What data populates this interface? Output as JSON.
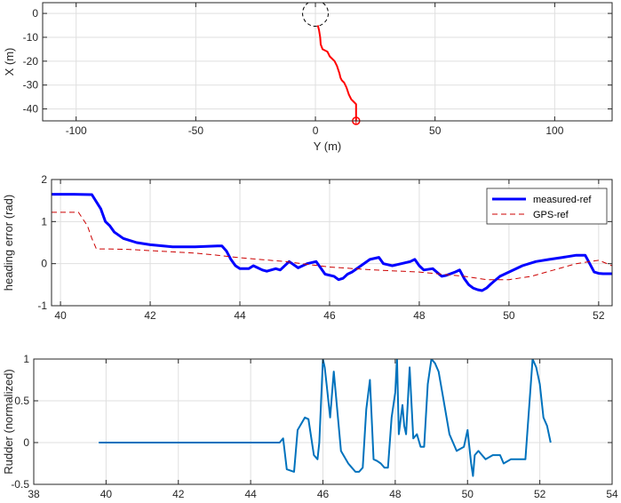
{
  "chart_data": [
    {
      "type": "line",
      "xlabel": "Y (m)",
      "ylabel": "X (m)",
      "xlim": [
        -114,
        124
      ],
      "ylim": [
        -45,
        4.5
      ],
      "xticks": [
        -100,
        -50,
        0,
        50,
        100
      ],
      "xtick_labels": [
        "-100",
        "-50",
        "0",
        "50",
        "100"
      ],
      "yticks": [
        0,
        -10,
        -20,
        -30,
        -40
      ],
      "ytick_labels": [
        "0",
        "-10",
        "-20",
        "-30",
        "-40"
      ],
      "grid": true,
      "colors": {
        "path": "#ff0000",
        "marker": "#ff0000",
        "circle": "#000000"
      },
      "series": [
        {
          "x": [
            1,
            1.5,
            2,
            2.2,
            3,
            5,
            6,
            8,
            9,
            10,
            10.5,
            11,
            12,
            13,
            14,
            15,
            16,
            17,
            17,
            17
          ],
          "y": [
            -5,
            -7,
            -10,
            -13,
            -15,
            -16,
            -18,
            -20,
            -22,
            -25,
            -27,
            -28,
            -29,
            -31,
            -34,
            -36,
            -37,
            -38,
            -41,
            -45
          ]
        }
      ],
      "start_circle": {
        "x": 0,
        "y": 0,
        "radius_m": 5
      },
      "end_marker": {
        "x": 17,
        "y": -45
      }
    },
    {
      "type": "line",
      "xlabel": "",
      "ylabel": "heading error (rad)",
      "xlim": [
        39.8,
        52.3
      ],
      "ylim": [
        -1,
        2
      ],
      "xticks": [
        40,
        42,
        44,
        46,
        48,
        50,
        52
      ],
      "xtick_labels": [
        "40",
        "42",
        "44",
        "46",
        "48",
        "50",
        "52"
      ],
      "yticks": [
        -1,
        0,
        1,
        2
      ],
      "ytick_labels": [
        "-1",
        "0",
        "1",
        "2"
      ],
      "grid": true,
      "legend": "top-right",
      "series": [
        {
          "name": "measured-ref",
          "color": "#0000ff",
          "style": "solid",
          "x": [
            39.8,
            40.3,
            40.7,
            40.9,
            41.0,
            41.1,
            41.2,
            41.4,
            41.7,
            42.0,
            42.5,
            43.0,
            43.5,
            43.6,
            43.7,
            43.8,
            43.9,
            44.0,
            44.2,
            44.3,
            44.4,
            44.5,
            44.6,
            44.8,
            44.9,
            45.1,
            45.3,
            45.5,
            45.7,
            45.8,
            45.9,
            46.1,
            46.2,
            46.3,
            46.4,
            46.5,
            46.7,
            46.9,
            47.1,
            47.2,
            47.4,
            47.6,
            47.8,
            47.9,
            48.0,
            48.1,
            48.3,
            48.5,
            48.6,
            48.8,
            48.9,
            49.0,
            49.1,
            49.2,
            49.3,
            49.4,
            49.5,
            49.6,
            49.8,
            50.0,
            50.3,
            50.6,
            50.9,
            51.2,
            51.5,
            51.7,
            51.8,
            51.9,
            52.0,
            52.1,
            52.3
          ],
          "y": [
            1.65,
            1.65,
            1.64,
            1.3,
            1.0,
            0.9,
            0.75,
            0.6,
            0.5,
            0.45,
            0.4,
            0.4,
            0.42,
            0.42,
            0.3,
            0.1,
            -0.05,
            -0.12,
            -0.12,
            -0.05,
            -0.1,
            -0.15,
            -0.18,
            -0.12,
            -0.15,
            0.05,
            -0.1,
            0.0,
            0.05,
            -0.1,
            -0.25,
            -0.3,
            -0.38,
            -0.35,
            -0.25,
            -0.2,
            -0.05,
            0.1,
            0.15,
            0.0,
            -0.05,
            0.0,
            0.05,
            0.1,
            -0.05,
            -0.15,
            -0.12,
            -0.3,
            -0.28,
            -0.2,
            -0.15,
            -0.35,
            -0.5,
            -0.58,
            -0.62,
            -0.64,
            -0.58,
            -0.48,
            -0.3,
            -0.2,
            -0.05,
            0.05,
            0.1,
            0.15,
            0.2,
            0.2,
            0.0,
            -0.2,
            -0.23,
            -0.24,
            -0.24
          ]
        },
        {
          "name": "GPS-ref",
          "color": "#cc0000",
          "style": "dashed",
          "x": [
            39.8,
            40.4,
            40.6,
            40.7,
            40.8,
            41.0,
            41.5,
            42.0,
            42.5,
            43.0,
            43.5,
            44.0,
            45.0,
            46.0,
            47.0,
            48.0,
            49.0,
            49.5,
            50.0,
            50.5,
            51.0,
            51.5,
            52.0,
            52.3
          ],
          "y": [
            1.22,
            1.22,
            0.9,
            0.6,
            0.35,
            0.35,
            0.34,
            0.31,
            0.28,
            0.25,
            0.2,
            0.14,
            0.05,
            -0.08,
            -0.15,
            -0.2,
            -0.3,
            -0.38,
            -0.38,
            -0.3,
            -0.15,
            0.0,
            0.08,
            -0.05
          ]
        }
      ]
    },
    {
      "type": "line",
      "xlabel": "",
      "ylabel": "Rudder (normalized)",
      "xlim": [
        38,
        54
      ],
      "ylim": [
        -0.5,
        1
      ],
      "xticks": [
        38,
        40,
        42,
        44,
        46,
        48,
        50,
        52,
        54
      ],
      "xtick_labels": [
        "38",
        "40",
        "42",
        "44",
        "46",
        "48",
        "50",
        "52",
        "54"
      ],
      "yticks": [
        -0.5,
        0,
        0.5,
        1
      ],
      "ytick_labels": [
        "-0.5",
        "0",
        "0.5",
        "1"
      ],
      "grid": true,
      "series": [
        {
          "color": "#0072bd",
          "x": [
            39.8,
            44.7,
            44.8,
            44.9,
            45.0,
            45.2,
            45.3,
            45.5,
            45.6,
            45.75,
            45.85,
            45.9,
            46.0,
            46.05,
            46.1,
            46.2,
            46.3,
            46.5,
            46.7,
            46.8,
            46.9,
            47.0,
            47.1,
            47.2,
            47.3,
            47.4,
            47.5,
            47.6,
            47.7,
            47.8,
            47.9,
            48.0,
            48.05,
            48.1,
            48.2,
            48.25,
            48.3,
            48.4,
            48.5,
            48.6,
            48.7,
            48.8,
            48.9,
            49.0,
            49.1,
            49.2,
            49.3,
            49.5,
            49.7,
            49.9,
            50.0,
            50.1,
            50.15,
            50.2,
            50.3,
            50.5,
            50.7,
            50.9,
            51.0,
            51.2,
            51.4,
            51.6,
            51.8,
            51.9,
            52.0,
            52.1,
            52.2,
            52.3
          ],
          "y": [
            0,
            0,
            0,
            0.05,
            -0.32,
            -0.35,
            0.15,
            0.3,
            0.28,
            -0.15,
            -0.2,
            0.0,
            1.0,
            0.9,
            0.7,
            0.3,
            0.85,
            -0.1,
            -0.25,
            -0.3,
            -0.35,
            -0.35,
            -0.3,
            0.4,
            0.75,
            -0.2,
            -0.22,
            -0.25,
            -0.3,
            -0.3,
            0.3,
            0.6,
            1.0,
            0.1,
            0.45,
            0.2,
            0.1,
            0.9,
            0.05,
            0.1,
            -0.05,
            -0.05,
            0.7,
            1.0,
            0.95,
            0.85,
            0.6,
            0.1,
            -0.1,
            -0.05,
            0.15,
            -0.25,
            -0.4,
            -0.15,
            -0.1,
            -0.2,
            -0.15,
            -0.15,
            -0.25,
            -0.2,
            -0.2,
            -0.2,
            1.0,
            0.9,
            0.7,
            0.3,
            0.2,
            0.0
          ]
        }
      ]
    }
  ]
}
